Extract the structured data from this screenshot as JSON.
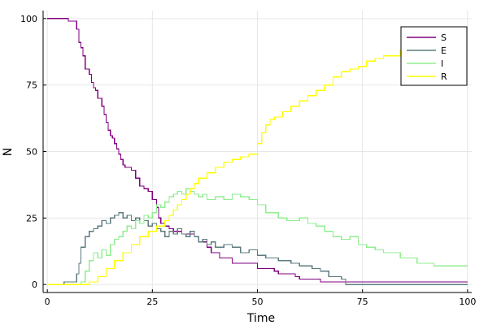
{
  "chart_data": {
    "type": "line",
    "title": "",
    "xlabel": "Time",
    "ylabel": "N",
    "xlim": [
      -1,
      101
    ],
    "ylim": [
      -3,
      103
    ],
    "xticks": [
      0,
      25,
      50,
      75,
      100
    ],
    "yticks": [
      0,
      25,
      50,
      75,
      100
    ],
    "grid": true,
    "legend_position": "top-right",
    "step": true,
    "series": [
      {
        "name": "S",
        "color": "#800080",
        "x": [
          0,
          5,
          7,
          7.5,
          8,
          8.5,
          9,
          10,
          10.5,
          11,
          11.5,
          12,
          13,
          13.5,
          14,
          14.5,
          15,
          15.5,
          16,
          16.5,
          17,
          17.5,
          18,
          18.5,
          19,
          20,
          21,
          22,
          23,
          24,
          25,
          26,
          26.5,
          27,
          28,
          29,
          30,
          32,
          35,
          36,
          38,
          39,
          41,
          44,
          50,
          54,
          55,
          59,
          60,
          63,
          65,
          100
        ],
        "y": [
          100,
          99,
          96,
          91,
          89,
          86,
          81,
          79,
          76,
          74,
          73,
          70,
          67,
          64,
          61,
          58,
          56,
          55,
          53,
          51,
          49,
          47,
          45,
          44,
          44,
          43,
          40,
          37,
          36,
          35,
          32,
          29,
          25,
          23,
          22,
          21,
          20,
          19,
          18,
          16,
          14,
          12,
          10,
          8,
          6,
          5,
          4,
          3,
          2,
          2,
          1,
          1
        ]
      },
      {
        "name": "E",
        "color": "#5c7b7f",
        "x": [
          0,
          4,
          7,
          7.5,
          8,
          9,
          10,
          11,
          12,
          13,
          14,
          15,
          16,
          17,
          18,
          19,
          20,
          21,
          22,
          23,
          24,
          25,
          26,
          27,
          28,
          29,
          30,
          31,
          32,
          33,
          34,
          35,
          36,
          37,
          38,
          39,
          40,
          42,
          44,
          46,
          48,
          50,
          52,
          55,
          58,
          60,
          63,
          65,
          67,
          70,
          71,
          100
        ],
        "y": [
          0,
          1,
          4,
          8,
          14,
          18,
          20,
          21,
          22,
          24,
          23,
          25,
          26,
          27,
          25,
          26,
          24,
          25,
          23,
          24,
          22,
          23,
          21,
          20,
          18,
          20,
          19,
          21,
          19,
          18,
          20,
          18,
          16,
          17,
          15,
          16,
          14,
          15,
          14,
          12,
          13,
          11,
          10,
          9,
          8,
          7,
          6,
          5,
          3,
          2,
          0,
          0
        ]
      },
      {
        "name": "I",
        "color": "#90ee90",
        "x": [
          0,
          8,
          9,
          10,
          11,
          12,
          13,
          14,
          15,
          16,
          17,
          18,
          19,
          20,
          21,
          22,
          23,
          24,
          25,
          26,
          27,
          28,
          29,
          30,
          31,
          32,
          33,
          34,
          35,
          36,
          37,
          38,
          40,
          42,
          44,
          46,
          48,
          50,
          52,
          55,
          57,
          60,
          62,
          64,
          66,
          68,
          70,
          72,
          74,
          76,
          78,
          80,
          84,
          88,
          92,
          100
        ],
        "y": [
          0,
          1,
          5,
          9,
          12,
          10,
          13,
          11,
          15,
          17,
          18,
          20,
          22,
          21,
          24,
          23,
          26,
          25,
          27,
          30,
          29,
          31,
          33,
          34,
          35,
          34,
          36,
          35,
          34,
          33,
          34,
          32,
          33,
          32,
          34,
          33,
          32,
          30,
          27,
          25,
          24,
          25,
          23,
          22,
          20,
          18,
          17,
          18,
          15,
          14,
          13,
          12,
          10,
          8,
          7,
          7
        ]
      },
      {
        "name": "R",
        "color": "#ffff00",
        "x": [
          0,
          10,
          12,
          14,
          16,
          18,
          20,
          22,
          24,
          26,
          28,
          29,
          30,
          31,
          32,
          33,
          34,
          35,
          36,
          38,
          40,
          42,
          44,
          46,
          48,
          50,
          51,
          52,
          53,
          54,
          56,
          58,
          60,
          62,
          64,
          66,
          68,
          70,
          72,
          74,
          76,
          78,
          80,
          84,
          88,
          92,
          96,
          100
        ],
        "y": [
          0,
          1,
          3,
          6,
          9,
          12,
          15,
          18,
          20,
          22,
          24,
          26,
          28,
          30,
          32,
          34,
          36,
          38,
          40,
          42,
          44,
          46,
          47,
          48,
          49,
          53,
          57,
          60,
          62,
          63,
          65,
          67,
          69,
          71,
          73,
          75,
          78,
          80,
          81,
          82,
          84,
          85,
          86,
          88,
          89,
          90,
          92,
          92
        ]
      }
    ]
  }
}
